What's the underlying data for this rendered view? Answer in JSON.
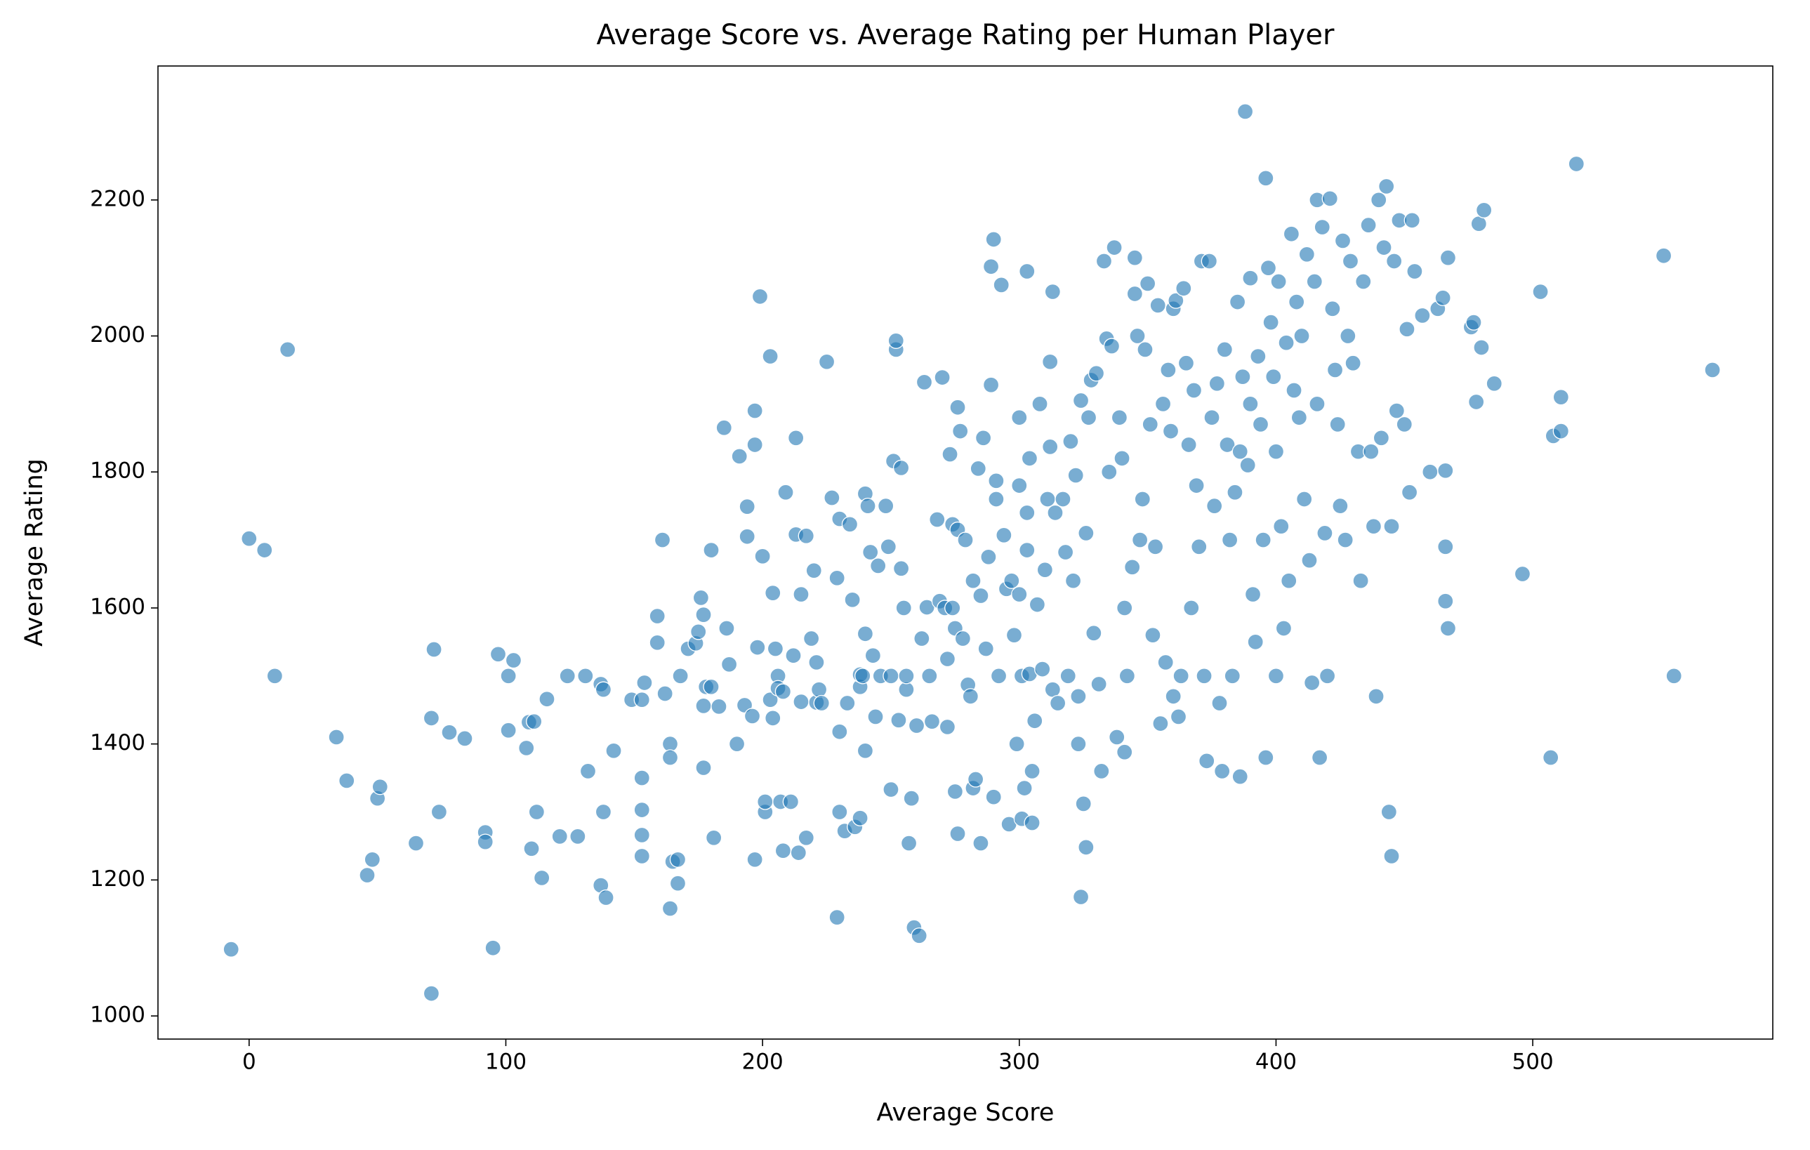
{
  "chart_data": {
    "type": "scatter",
    "title": "Average Score vs. Average Rating per Human Player",
    "x_label": "Average Score",
    "y_label": "Average Rating",
    "color": "#1f77b4",
    "xlim": [
      -35.5,
      593.5
    ],
    "ylim": [
      966,
      2397
    ],
    "xticks": [
      0,
      100,
      200,
      300,
      400,
      500
    ],
    "yticks": [
      1000,
      1200,
      1400,
      1600,
      1800,
      2000,
      2200
    ],
    "x": [
      -7,
      0,
      6,
      10,
      15,
      34,
      38,
      46,
      48,
      50,
      51,
      65,
      71,
      71,
      72,
      74,
      78,
      84,
      92,
      92,
      95,
      97,
      101,
      101,
      103,
      108,
      109,
      110,
      111,
      112,
      114,
      116,
      121,
      124,
      128,
      131,
      132,
      137,
      137,
      138,
      138,
      139,
      142,
      149,
      153,
      153,
      153,
      153,
      153,
      154,
      159,
      159,
      161,
      162,
      164,
      164,
      164,
      165,
      167,
      167,
      168,
      171,
      174,
      175,
      176,
      177,
      177,
      178,
      177,
      180,
      180,
      181,
      183,
      185,
      186,
      187,
      190,
      191,
      193,
      194,
      194,
      196,
      197,
      197,
      197,
      198,
      199,
      200,
      201,
      201,
      203,
      203,
      204,
      204,
      205,
      206,
      206,
      207,
      208,
      208,
      209,
      211,
      212,
      213,
      213,
      214,
      215,
      215,
      217,
      217,
      219,
      220,
      221,
      221,
      222,
      223,
      225,
      227,
      229,
      229,
      230,
      230,
      230,
      232,
      233,
      234,
      235,
      236,
      238,
      238,
      238,
      239,
      240,
      240,
      240,
      241,
      242,
      243,
      244,
      245,
      246,
      248,
      249,
      250,
      250,
      251,
      252,
      252,
      253,
      254,
      254,
      255,
      256,
      256,
      257,
      258,
      259,
      260,
      261,
      262,
      263,
      264,
      265,
      266,
      268,
      269,
      270,
      271,
      272,
      272,
      273,
      274,
      274,
      275,
      275,
      276,
      276,
      276,
      277,
      278,
      279,
      280,
      281,
      282,
      282,
      283,
      284,
      285,
      285,
      286,
      287,
      288,
      289,
      289,
      290,
      290,
      291,
      291,
      292,
      293,
      294,
      295,
      296,
      297,
      298,
      299,
      300,
      300,
      300,
      301,
      301,
      302,
      303,
      303,
      303,
      304,
      304,
      305,
      305,
      306,
      307,
      308,
      309,
      310,
      311,
      312,
      312,
      313,
      313,
      314,
      315,
      317,
      318,
      319,
      320,
      321,
      322,
      323,
      323,
      324,
      324,
      325,
      326,
      326,
      327,
      328,
      329,
      330,
      331,
      332,
      333,
      334,
      335,
      336,
      337,
      338,
      339,
      340,
      341,
      341,
      342,
      344,
      345,
      345,
      346,
      347,
      348,
      349,
      350,
      351,
      352,
      353,
      354,
      355,
      356,
      357,
      358,
      359,
      360,
      360,
      361,
      362,
      363,
      364,
      365,
      366,
      367,
      368,
      369,
      370,
      371,
      372,
      373,
      374,
      375,
      376,
      377,
      378,
      379,
      380,
      381,
      382,
      383,
      384,
      385,
      386,
      386,
      387,
      388,
      389,
      390,
      390,
      391,
      392,
      393,
      394,
      395,
      396,
      396,
      397,
      398,
      399,
      400,
      400,
      401,
      402,
      403,
      404,
      405,
      406,
      407,
      408,
      409,
      410,
      411,
      412,
      413,
      414,
      415,
      416,
      416,
      417,
      418,
      419,
      420,
      421,
      422,
      423,
      424,
      425,
      426,
      427,
      428,
      429,
      430,
      432,
      433,
      434,
      436,
      437,
      438,
      439,
      440,
      441,
      442,
      443,
      444,
      445,
      445,
      446,
      447,
      448,
      450,
      451,
      452,
      453,
      454,
      457,
      460,
      463,
      465,
      466,
      466,
      466,
      467,
      467,
      476,
      477,
      478,
      479,
      480,
      481,
      485,
      496,
      503,
      507,
      508,
      511,
      511,
      517,
      551,
      555,
      570
    ],
    "values": [
      1098,
      1702,
      1685,
      1500,
      1980,
      1410,
      1346,
      1207,
      1230,
      1320,
      1337,
      1254,
      1033,
      1438,
      1539,
      1300,
      1417,
      1408,
      1270,
      1256,
      1100,
      1532,
      1500,
      1420,
      1523,
      1394,
      1432,
      1246,
      1433,
      1300,
      1203,
      1466,
      1264,
      1500,
      1264,
      1500,
      1360,
      1192,
      1488,
      1300,
      1480,
      1174,
      1390,
      1465,
      1465,
      1266,
      1303,
      1350,
      1235,
      1490,
      1588,
      1549,
      1700,
      1474,
      1400,
      1380,
      1158,
      1227,
      1230,
      1195,
      1500,
      1540,
      1548,
      1565,
      1615,
      1590,
      1456,
      1484,
      1365,
      1685,
      1484,
      1262,
      1455,
      1865,
      1570,
      1517,
      1400,
      1823,
      1457,
      1749,
      1705,
      1441,
      1890,
      1840,
      1230,
      1542,
      2058,
      1676,
      1300,
      1315,
      1970,
      1465,
      1622,
      1438,
      1540,
      1500,
      1482,
      1315,
      1243,
      1477,
      1770,
      1315,
      1530,
      1708,
      1850,
      1240,
      1620,
      1462,
      1706,
      1262,
      1555,
      1655,
      1520,
      1461,
      1480,
      1460,
      1962,
      1762,
      1145,
      1644,
      1731,
      1300,
      1418,
      1272,
      1460,
      1723,
      1612,
      1278,
      1484,
      1502,
      1291,
      1500,
      1768,
      1562,
      1390,
      1750,
      1682,
      1530,
      1440,
      1662,
      1500,
      1750,
      1690,
      1333,
      1500,
      1816,
      1980,
      1993,
      1435,
      1806,
      1658,
      1600,
      1480,
      1500,
      1254,
      1320,
      1130,
      1427,
      1118,
      1555,
      1932,
      1601,
      1500,
      1433,
      1730,
      1610,
      1939,
      1600,
      1525,
      1425,
      1826,
      1600,
      1723,
      1570,
      1330,
      1715,
      1895,
      1268,
      1860,
      1555,
      1700,
      1487,
      1470,
      1640,
      1335,
      1348,
      1805,
      1254,
      1618,
      1850,
      1540,
      1675,
      1928,
      2102,
      2142,
      1322,
      1787,
      1760,
      1500,
      2075,
      1707,
      1628,
      1282,
      1640,
      1560,
      1400,
      1880,
      1780,
      1620,
      1500,
      1290,
      1335,
      1685,
      1740,
      2095,
      1503,
      1820,
      1284,
      1360,
      1434,
      1605,
      1900,
      1510,
      1656,
      1760,
      1962,
      1837,
      2065,
      1480,
      1740,
      1460,
      1760,
      1682,
      1500,
      1845,
      1640,
      1795,
      1400,
      1470,
      1175,
      1905,
      1312,
      1710,
      1248,
      1880,
      1935,
      1563,
      1945,
      1488,
      1360,
      2110,
      1996,
      1800,
      1985,
      2130,
      1410,
      1880,
      1820,
      1600,
      1388,
      1500,
      1660,
      2062,
      2115,
      2000,
      1700,
      1760,
      1980,
      2077,
      1870,
      1560,
      1690,
      2045,
      1430,
      1900,
      1520,
      1950,
      1860,
      2040,
      1470,
      2052,
      1440,
      1500,
      2070,
      1960,
      1840,
      1600,
      1920,
      1780,
      1690,
      2110,
      1500,
      1375,
      2110,
      1880,
      1750,
      1930,
      1460,
      1360,
      1980,
      1840,
      1700,
      1500,
      1770,
      2050,
      1352,
      1830,
      1940,
      2330,
      1810,
      2085,
      1900,
      1620,
      1550,
      1970,
      1870,
      1700,
      2232,
      1380,
      2100,
      2020,
      1940,
      1500,
      1830,
      2080,
      1720,
      1570,
      1990,
      1640,
      2150,
      1920,
      2050,
      1880,
      2000,
      1760,
      2120,
      1670,
      1490,
      2080,
      2200,
      1900,
      1380,
      2160,
      1710,
      1500,
      2202,
      2040,
      1950,
      1870,
      1750,
      2140,
      1700,
      2000,
      2110,
      1960,
      1830,
      1640,
      2080,
      2163,
      1830,
      1720,
      1470,
      2200,
      1850,
      2130,
      2220,
      1300,
      1720,
      1235,
      2110,
      1890,
      2170,
      1870,
      2010,
      1770,
      2170,
      2095,
      2030,
      1800,
      2040,
      2056,
      1610,
      1690,
      1802,
      2115,
      1570,
      2013,
      2020,
      1903,
      2165,
      1983,
      2185,
      1930,
      1650,
      2065,
      1380,
      1853,
      1910,
      1860,
      2253,
      2118,
      1500,
      1950
    ]
  }
}
